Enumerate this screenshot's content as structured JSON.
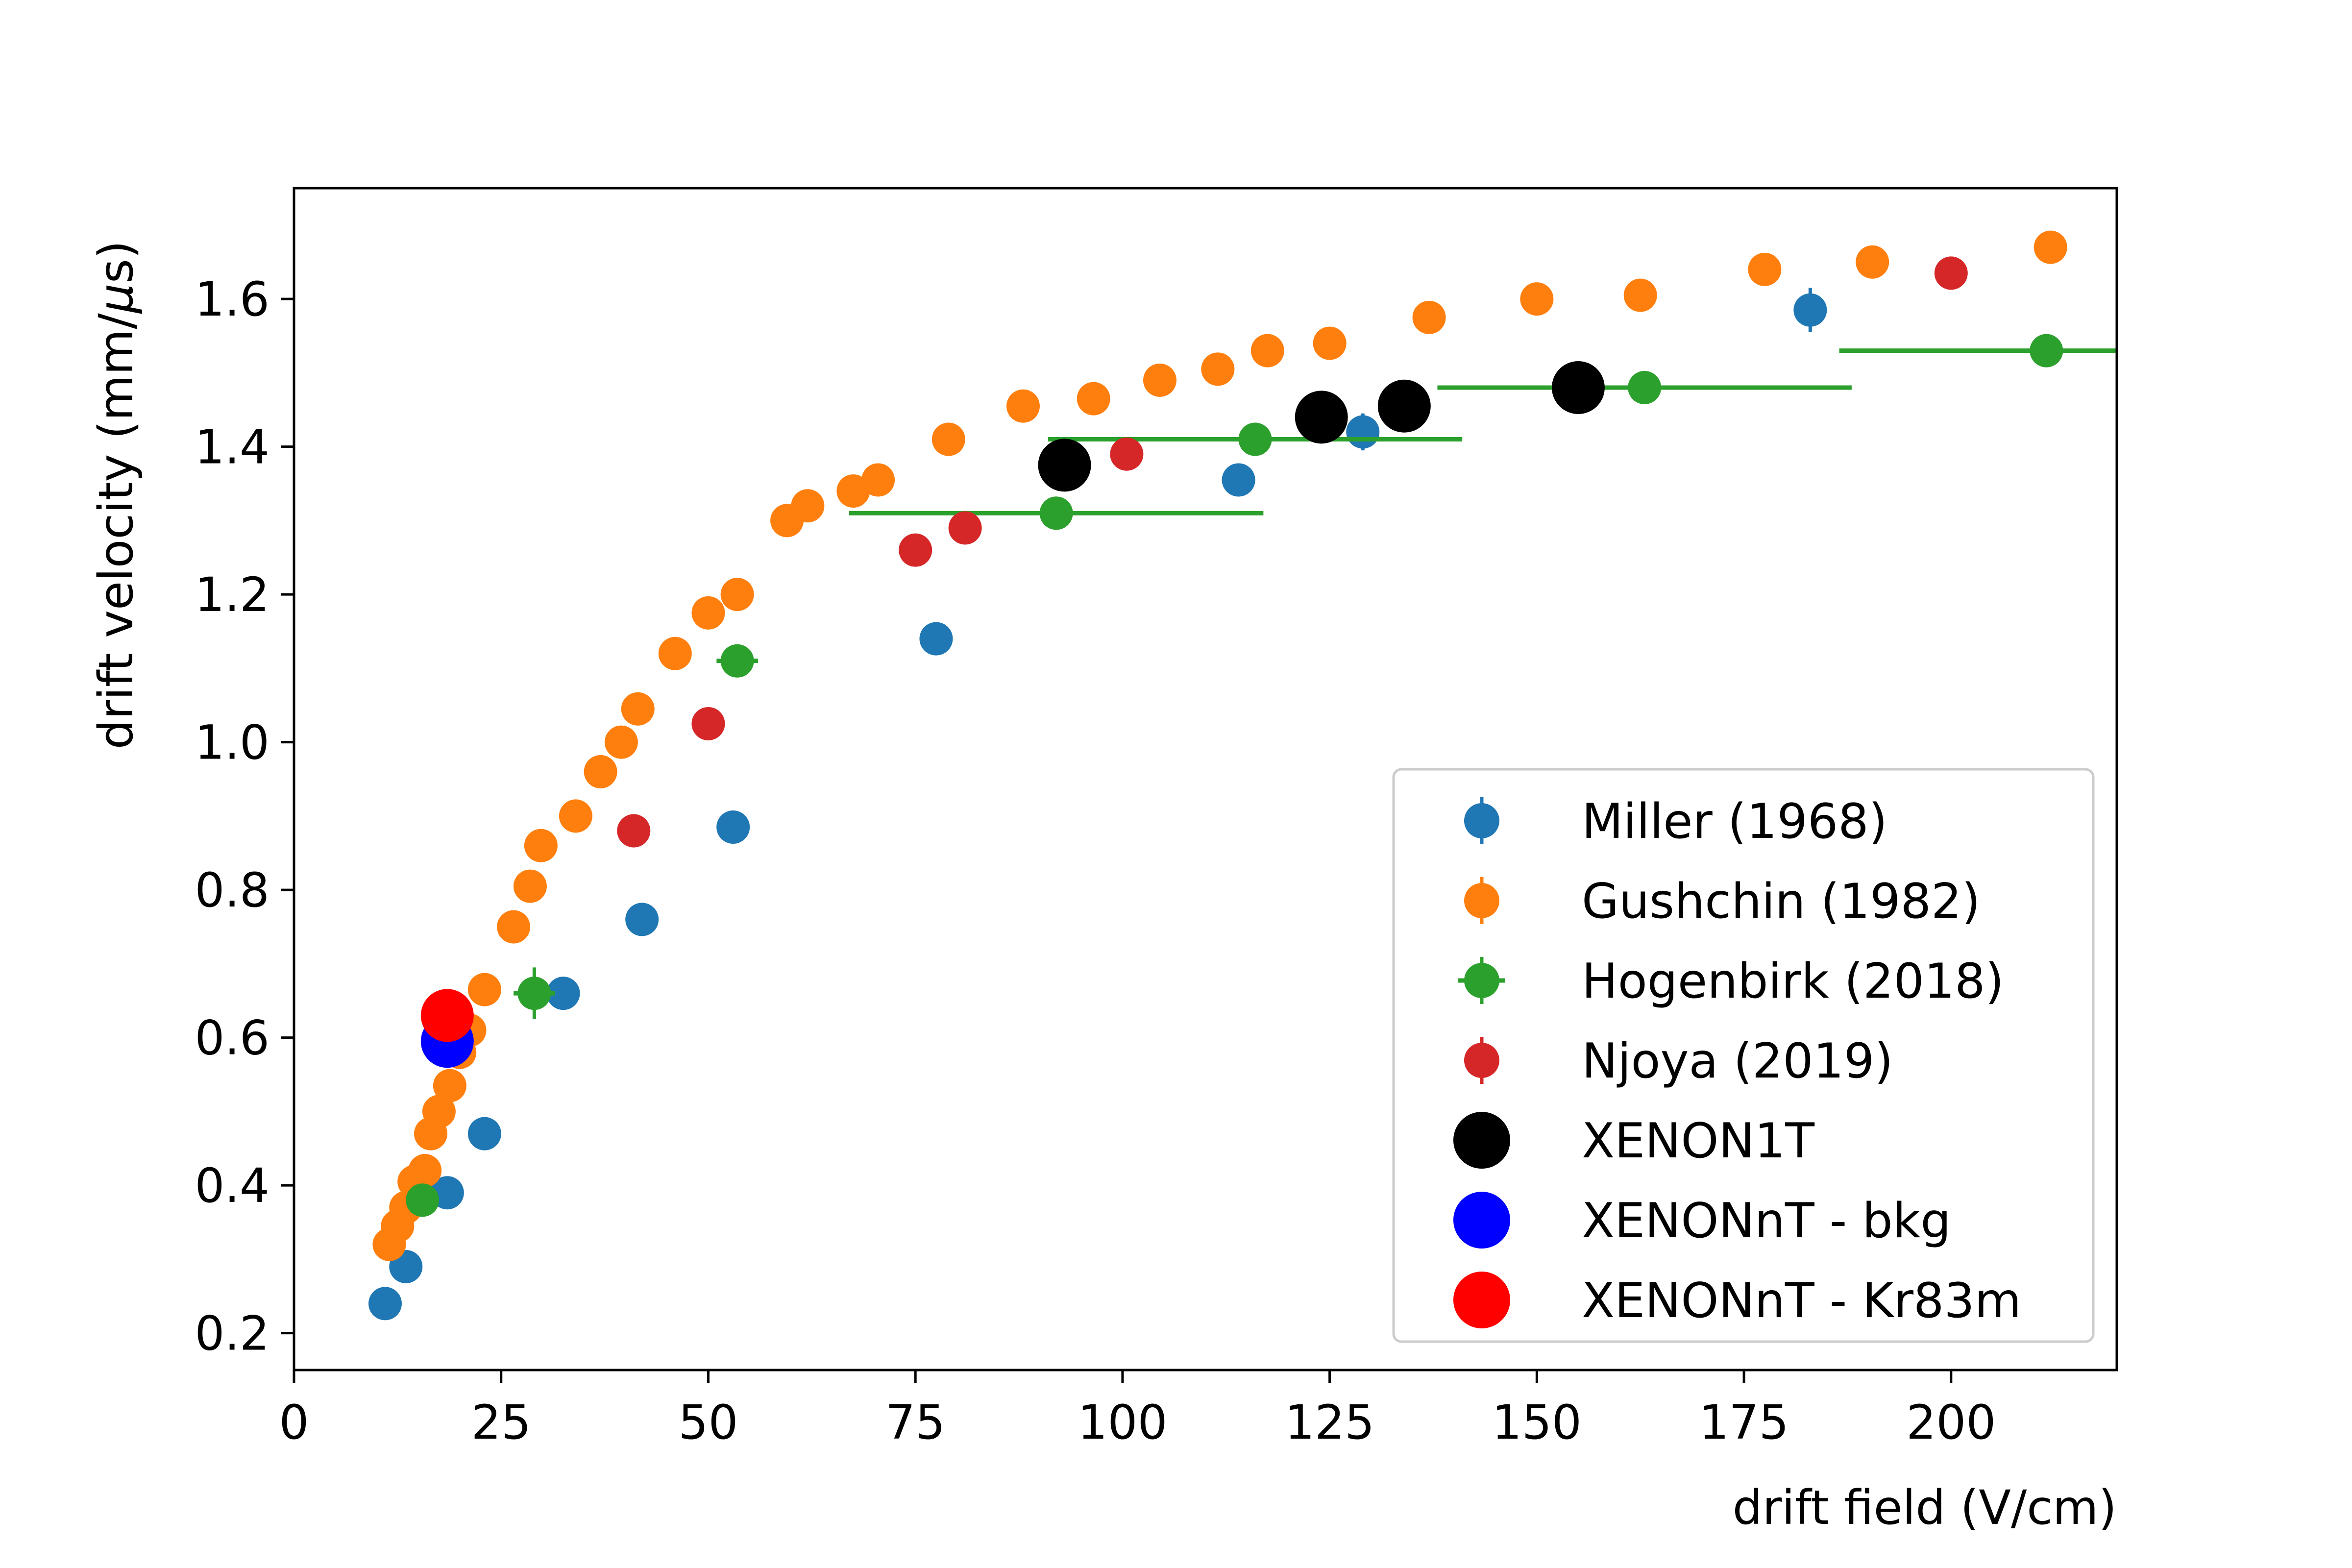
{
  "chart_data": {
    "type": "scatter",
    "xlabel": "drift field (V/cm)",
    "ylabel_text": "drift velocity (mm/",
    "ylabel_mu": "μ",
    "ylabel_suffix": "s)",
    "xlim": [
      0,
      220
    ],
    "ylim": [
      0.15,
      1.75
    ],
    "xticks": [
      0,
      25,
      50,
      75,
      100,
      125,
      150,
      175,
      200
    ],
    "yticks": [
      0.2,
      0.4,
      0.6,
      0.8,
      1.0,
      1.2,
      1.4,
      1.6
    ],
    "xtick_labels": [
      "0",
      "25",
      "50",
      "75",
      "100",
      "125",
      "150",
      "175",
      "200"
    ],
    "ytick_labels": [
      "0.2",
      "0.4",
      "0.6",
      "0.8",
      "1.0",
      "1.2",
      "1.4",
      "1.6"
    ],
    "grid": false,
    "legend_position": "lower-right",
    "series": [
      {
        "name": "Miller (1968)",
        "color": "#1f77b4",
        "marker": "small-circle-errorbar",
        "points": [
          {
            "x": 11,
            "y": 0.24,
            "yerr": 0.005
          },
          {
            "x": 13.5,
            "y": 0.29,
            "yerr": 0.005
          },
          {
            "x": 18.5,
            "y": 0.39,
            "yerr": 0.005
          },
          {
            "x": 23,
            "y": 0.47,
            "yerr": 0.005
          },
          {
            "x": 32.5,
            "y": 0.66,
            "yerr": 0.005
          },
          {
            "x": 42,
            "y": 0.76,
            "yerr": 0.005
          },
          {
            "x": 53,
            "y": 0.885,
            "yerr": 0.005
          },
          {
            "x": 77.5,
            "y": 1.14,
            "yerr": 0.005
          },
          {
            "x": 114,
            "y": 1.355,
            "yerr": 0.005
          },
          {
            "x": 129,
            "y": 1.42,
            "yerr": 0.025
          },
          {
            "x": 183,
            "y": 1.585,
            "yerr": 0.03
          }
        ]
      },
      {
        "name": "Gushchin (1982)",
        "color": "#ff7f0e",
        "marker": "small-circle-errorbar",
        "points": [
          {
            "x": 11.5,
            "y": 0.32,
            "yerr": 0.005
          },
          {
            "x": 12.5,
            "y": 0.345,
            "yerr": 0.005
          },
          {
            "x": 13.5,
            "y": 0.37,
            "yerr": 0.005
          },
          {
            "x": 14.5,
            "y": 0.405,
            "yerr": 0.005
          },
          {
            "x": 15.8,
            "y": 0.42,
            "yerr": 0.005
          },
          {
            "x": 16.5,
            "y": 0.47,
            "yerr": 0.005
          },
          {
            "x": 17.5,
            "y": 0.5,
            "yerr": 0.005
          },
          {
            "x": 18.8,
            "y": 0.535,
            "yerr": 0.005
          },
          {
            "x": 20,
            "y": 0.58,
            "yerr": 0.005
          },
          {
            "x": 21.2,
            "y": 0.61,
            "yerr": 0.005
          },
          {
            "x": 23,
            "y": 0.665,
            "yerr": 0.005
          },
          {
            "x": 26.5,
            "y": 0.75,
            "yerr": 0.005
          },
          {
            "x": 28.5,
            "y": 0.805,
            "yerr": 0.005
          },
          {
            "x": 29.8,
            "y": 0.86,
            "yerr": 0.005
          },
          {
            "x": 34,
            "y": 0.9,
            "yerr": 0.005
          },
          {
            "x": 37,
            "y": 0.96,
            "yerr": 0.005
          },
          {
            "x": 39.5,
            "y": 1.0,
            "yerr": 0.005
          },
          {
            "x": 41.5,
            "y": 1.045,
            "yerr": 0.005
          },
          {
            "x": 46,
            "y": 1.12,
            "yerr": 0.005
          },
          {
            "x": 50,
            "y": 1.175,
            "yerr": 0.005
          },
          {
            "x": 53.5,
            "y": 1.2,
            "yerr": 0.005
          },
          {
            "x": 59.5,
            "y": 1.3,
            "yerr": 0.005
          },
          {
            "x": 62,
            "y": 1.32,
            "yerr": 0.005
          },
          {
            "x": 67.5,
            "y": 1.34,
            "yerr": 0.005
          },
          {
            "x": 70.5,
            "y": 1.355,
            "yerr": 0.005
          },
          {
            "x": 79,
            "y": 1.41,
            "yerr": 0.005
          },
          {
            "x": 88,
            "y": 1.455,
            "yerr": 0.005
          },
          {
            "x": 96.5,
            "y": 1.465,
            "yerr": 0.005
          },
          {
            "x": 104.5,
            "y": 1.49,
            "yerr": 0.005
          },
          {
            "x": 111.5,
            "y": 1.505,
            "yerr": 0.005
          },
          {
            "x": 117.5,
            "y": 1.53,
            "yerr": 0.005
          },
          {
            "x": 125,
            "y": 1.54,
            "yerr": 0.005
          },
          {
            "x": 137,
            "y": 1.575,
            "yerr": 0.005
          },
          {
            "x": 150,
            "y": 1.6,
            "yerr": 0.005
          },
          {
            "x": 162.5,
            "y": 1.605,
            "yerr": 0.005
          },
          {
            "x": 177.5,
            "y": 1.64,
            "yerr": 0.005
          },
          {
            "x": 190.5,
            "y": 1.65,
            "yerr": 0.005
          },
          {
            "x": 212,
            "y": 1.67,
            "yerr": 0.005
          }
        ]
      },
      {
        "name": "Hogenbirk (2018)",
        "color": "#2ca02c",
        "marker": "small-circle-errorbar",
        "points": [
          {
            "x": 15.5,
            "y": 0.38,
            "xerr": 0.5,
            "yerr": 0.005
          },
          {
            "x": 29,
            "y": 0.66,
            "xerr": 2.5,
            "yerr": 0.035
          },
          {
            "x": 53.5,
            "y": 1.11,
            "xerr": 2.5,
            "yerr": 0.005
          },
          {
            "x": 92,
            "y": 1.31,
            "xerr": 25,
            "yerr": 0.005
          },
          {
            "x": 116,
            "y": 1.41,
            "xerr": 25,
            "yerr": 0.005
          },
          {
            "x": 163,
            "y": 1.48,
            "xerr": 25,
            "yerr": 0.005
          },
          {
            "x": 211.5,
            "y": 1.53,
            "xerr": 25,
            "yerr": 0.005
          }
        ]
      },
      {
        "name": "Njoya (2019)",
        "color": "#d62728",
        "marker": "small-circle-errorbar",
        "points": [
          {
            "x": 41,
            "y": 0.88,
            "yerr": 0.005
          },
          {
            "x": 50,
            "y": 1.025,
            "yerr": 0.005
          },
          {
            "x": 75,
            "y": 1.26,
            "yerr": 0.005
          },
          {
            "x": 81,
            "y": 1.29,
            "yerr": 0.005
          },
          {
            "x": 100.5,
            "y": 1.39,
            "yerr": 0.005
          },
          {
            "x": 200,
            "y": 1.635,
            "yerr": 0.005
          }
        ]
      },
      {
        "name": "XENON1T",
        "color": "#000000",
        "marker": "large-circle",
        "points": [
          {
            "x": 93,
            "y": 1.375
          },
          {
            "x": 124,
            "y": 1.44
          },
          {
            "x": 134,
            "y": 1.455
          },
          {
            "x": 155,
            "y": 1.48
          }
        ]
      },
      {
        "name": "XENONnT - bkg",
        "color": "#0000ff",
        "marker": "large-circle",
        "points": [
          {
            "x": 18.5,
            "y": 0.595
          }
        ]
      },
      {
        "name": "XENONnT - Kr83m",
        "color": "#ff0000",
        "marker": "large-circle",
        "points": [
          {
            "x": 18.5,
            "y": 0.63
          }
        ]
      }
    ]
  }
}
